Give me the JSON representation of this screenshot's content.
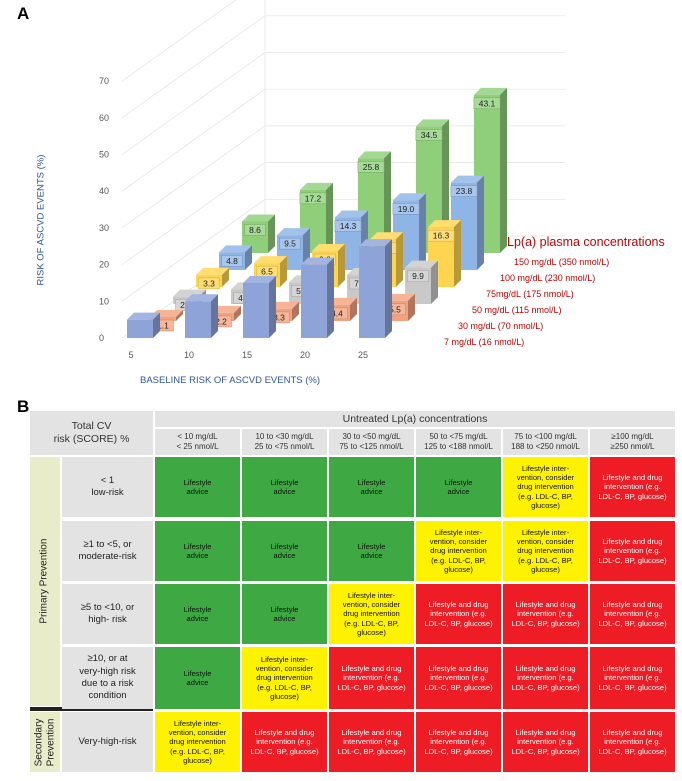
{
  "panel_a_label": "A",
  "panel_b_label": "B",
  "chart_data": {
    "type": "bar",
    "subtype": "3d-grouped-bar",
    "xlabel": "BASELINE RISK OF ASCVD EVENTS (%)",
    "ylabel": "RISK OF ASCVD EVENTS (%)",
    "categories": [
      "5",
      "10",
      "15",
      "20",
      "25"
    ],
    "ylim": [
      0,
      70
    ],
    "yticks": [
      "0",
      "10",
      "20",
      "30",
      "40",
      "50",
      "60",
      "70"
    ],
    "legend_title": "Lp(a) plasma concentrations",
    "legend_position": "right",
    "series": [
      {
        "name": "7 mg/dL (16 nmol/L)",
        "color": "#8ea3d8",
        "values": [
          5,
          10,
          15,
          20,
          25
        ],
        "labels": [
          "",
          "",
          "",
          "",
          ""
        ]
      },
      {
        "name": "30 mg/dL (70 nmol/L)",
        "color": "#f4a27e",
        "values": [
          1.1,
          2.2,
          3.3,
          4.4,
          5.5
        ],
        "labels": [
          "1.1",
          "2.2",
          "3.3",
          "4.4",
          "5.5"
        ]
      },
      {
        "name": "50 mg/dL (115 nmol/L)",
        "color": "#c9c9c9",
        "values": [
          2.0,
          4.0,
          5.9,
          7.9,
          9.9
        ],
        "labels": [
          "2.0",
          "4.0",
          "5.9",
          "7.9",
          "9.9"
        ]
      },
      {
        "name": "75mg/dL (175 nmol/L)",
        "color": "#ffd54f",
        "values": [
          3.3,
          6.5,
          9.8,
          13.0,
          16.3
        ],
        "labels": [
          "3.3",
          "6.5",
          "9.8",
          "13.0",
          "16.3"
        ]
      },
      {
        "name": "100 mg/dL (230 nmol/L)",
        "color": "#8fb4e6",
        "values": [
          4.8,
          9.5,
          14.3,
          19.0,
          23.8
        ],
        "labels": [
          "4.8",
          "9.5",
          "14.3",
          "19.0",
          "23.8"
        ]
      },
      {
        "name": "150 mg/dL (350 nmol/L)",
        "color": "#8fcf7a",
        "values": [
          8.6,
          17.2,
          25.8,
          34.5,
          43.1
        ],
        "labels": [
          "8.6",
          "17.2",
          "25.8",
          "34.5",
          "43.1"
        ]
      }
    ]
  },
  "table": {
    "corner": "Total CV\nrisk (SCORE) %",
    "super_header": "Untreated Lp(a) concentrations",
    "columns": [
      "< 10 mg/dL\n< 25 nmol/L",
      "10 to <30 mg/dL\n25 to <75 nmol/L",
      "30 to <50 mg/dL\n75 to <125 nmol/L",
      "50 to <75 mg/dL\n125 to <188 nmol/L",
      "75 to <100 mg/dL\n188 to <250 nmol/L",
      "≥100 mg/dL\n≥250 nmol/L"
    ],
    "groups": [
      {
        "label": "Primary Prevention",
        "rows": [
          0,
          1,
          2,
          3
        ]
      },
      {
        "label": "Secondary\nPrevention",
        "rows": [
          4
        ]
      }
    ],
    "rows": [
      {
        "label": "< 1\nlow-risk",
        "cells": [
          "g",
          "g",
          "g",
          "g",
          "y",
          "r"
        ]
      },
      {
        "label": "≥1 to <5, or\nmoderate-risk",
        "cells": [
          "g",
          "g",
          "g",
          "y",
          "y",
          "r"
        ]
      },
      {
        "label": "≥5 to <10, or\nhigh- risk",
        "cells": [
          "g",
          "g",
          "y",
          "r",
          "r",
          "r"
        ]
      },
      {
        "label": "≥10, or at\nvery-high risk\ndue to a risk\ncondition",
        "cells": [
          "g",
          "y",
          "r",
          "r",
          "r",
          "r"
        ]
      },
      {
        "label": "Very-high-risk",
        "cells": [
          "y",
          "r",
          "r",
          "r",
          "r",
          "r"
        ]
      }
    ],
    "cell_text": {
      "g": "Lifestyle\nadvice",
      "y": "Lifestyle inter-\nvention, consider\ndrug intervention\n(e.g. LDL-C, BP,\nglucose)",
      "r": "Lifestyle and drug\nintervention (e.g.\nLDL-C, BP, glucose)"
    },
    "colors": {
      "green": "#3ea843",
      "yellow": "#fff200",
      "red": "#ee1c24",
      "header": "#e3e3e3"
    }
  }
}
